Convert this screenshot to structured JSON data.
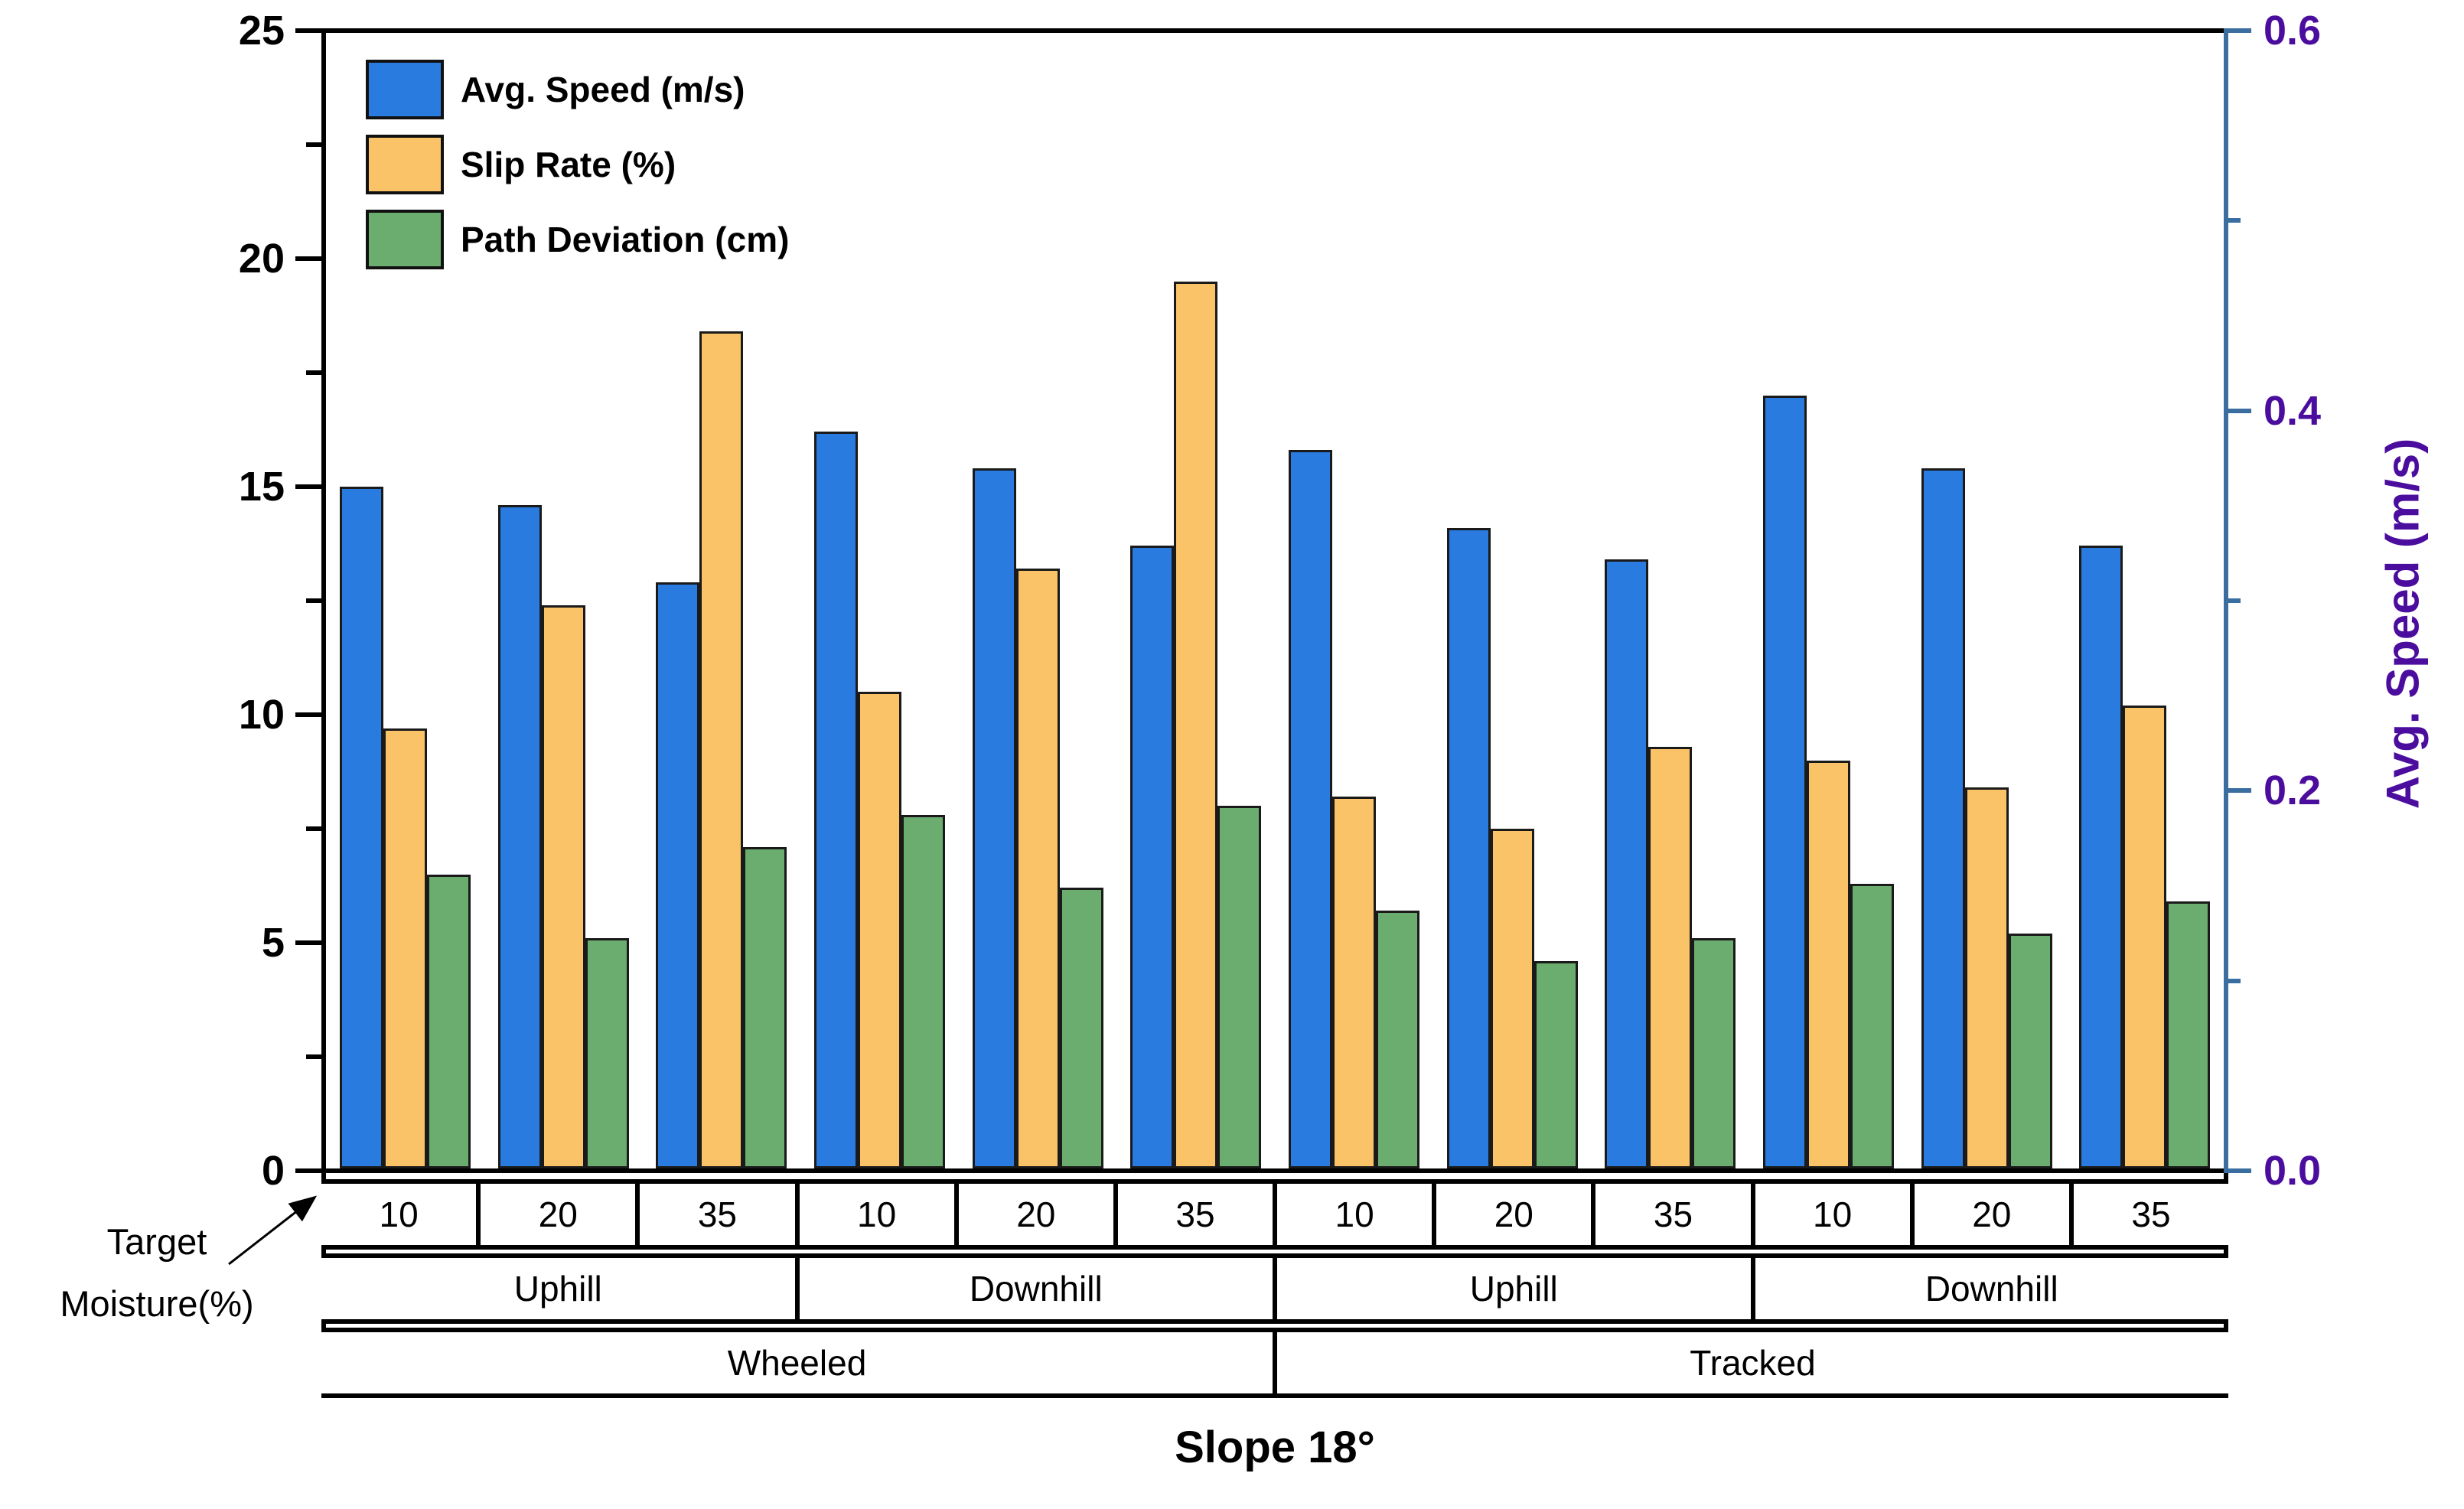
{
  "title": "Slope 18°",
  "annotation": {
    "line1": "Target",
    "line2": "Moisture(%)"
  },
  "axes": {
    "left": {
      "tick_labels": [
        "0",
        "5",
        "10",
        "15",
        "20",
        "25"
      ],
      "tick_values": [
        0,
        5,
        10,
        15,
        20,
        25
      ],
      "minor_tick_values": [
        2.5,
        7.5,
        12.5,
        17.5,
        22.5
      ],
      "range": [
        0,
        25
      ],
      "color": "#000000"
    },
    "right": {
      "title": "Avg. Speed (m/s)",
      "tick_labels": [
        "0.0",
        "0.2",
        "0.4",
        "0.6"
      ],
      "tick_values": [
        0.0,
        0.2,
        0.4,
        0.6
      ],
      "minor_tick_values": [
        0.1,
        0.3,
        0.5
      ],
      "range": [
        0,
        0.6
      ],
      "axis_color": "#3A6DA0",
      "label_color": "#4B0D9E"
    }
  },
  "legend": [
    {
      "label": "Avg. Speed (m/s)",
      "color": "#2A7BE0"
    },
    {
      "label": "Slip Rate (%)",
      "color": "#FBC368"
    },
    {
      "label": "Path Deviation (cm)",
      "color": "#6BAD6F"
    }
  ],
  "x_axis_table": {
    "moisture_labels": [
      "10",
      "20",
      "35",
      "10",
      "20",
      "35",
      "10",
      "20",
      "35",
      "10",
      "20",
      "35"
    ],
    "direction_labels": [
      "Uphill",
      "Downhill",
      "Uphill",
      "Downhill"
    ],
    "vehicle_labels": [
      "Wheeled",
      "Tracked"
    ]
  },
  "chart_data": {
    "type": "bar",
    "title": "Slope 18°",
    "grid": false,
    "legend_position": "top-left-inside",
    "left_axis_range": [
      0,
      25
    ],
    "right_axis_range": [
      0,
      0.6
    ],
    "x_groups": [
      {
        "vehicle": "Wheeled",
        "direction": "Uphill",
        "moisture_pct": 10
      },
      {
        "vehicle": "Wheeled",
        "direction": "Uphill",
        "moisture_pct": 20
      },
      {
        "vehicle": "Wheeled",
        "direction": "Uphill",
        "moisture_pct": 35
      },
      {
        "vehicle": "Wheeled",
        "direction": "Downhill",
        "moisture_pct": 10
      },
      {
        "vehicle": "Wheeled",
        "direction": "Downhill",
        "moisture_pct": 20
      },
      {
        "vehicle": "Wheeled",
        "direction": "Downhill",
        "moisture_pct": 35
      },
      {
        "vehicle": "Tracked",
        "direction": "Uphill",
        "moisture_pct": 10
      },
      {
        "vehicle": "Tracked",
        "direction": "Uphill",
        "moisture_pct": 20
      },
      {
        "vehicle": "Tracked",
        "direction": "Uphill",
        "moisture_pct": 35
      },
      {
        "vehicle": "Tracked",
        "direction": "Downhill",
        "moisture_pct": 10
      },
      {
        "vehicle": "Tracked",
        "direction": "Downhill",
        "moisture_pct": 20
      },
      {
        "vehicle": "Tracked",
        "direction": "Downhill",
        "moisture_pct": 35
      }
    ],
    "series": [
      {
        "name": "Avg. Speed (m/s)",
        "axis": "right",
        "color": "#2A7BE0",
        "values_m_per_s": [
          0.36,
          0.35,
          0.31,
          0.39,
          0.37,
          0.33,
          0.38,
          0.34,
          0.32,
          0.41,
          0.37,
          0.33
        ],
        "values_on_left_scale": [
          15.0,
          14.6,
          12.9,
          16.2,
          15.4,
          13.7,
          15.8,
          14.1,
          13.4,
          17.0,
          15.4,
          13.7
        ]
      },
      {
        "name": "Slip Rate (%)",
        "axis": "left",
        "color": "#FBC368",
        "values": [
          9.7,
          12.4,
          18.4,
          10.5,
          13.2,
          19.5,
          8.2,
          7.5,
          9.3,
          9.0,
          8.4,
          10.2
        ]
      },
      {
        "name": "Path Deviation (cm)",
        "axis": "left",
        "color": "#6BAD6F",
        "values": [
          6.5,
          5.1,
          7.1,
          7.8,
          6.2,
          8.0,
          5.7,
          4.6,
          5.1,
          6.3,
          5.2,
          5.9
        ]
      }
    ]
  }
}
